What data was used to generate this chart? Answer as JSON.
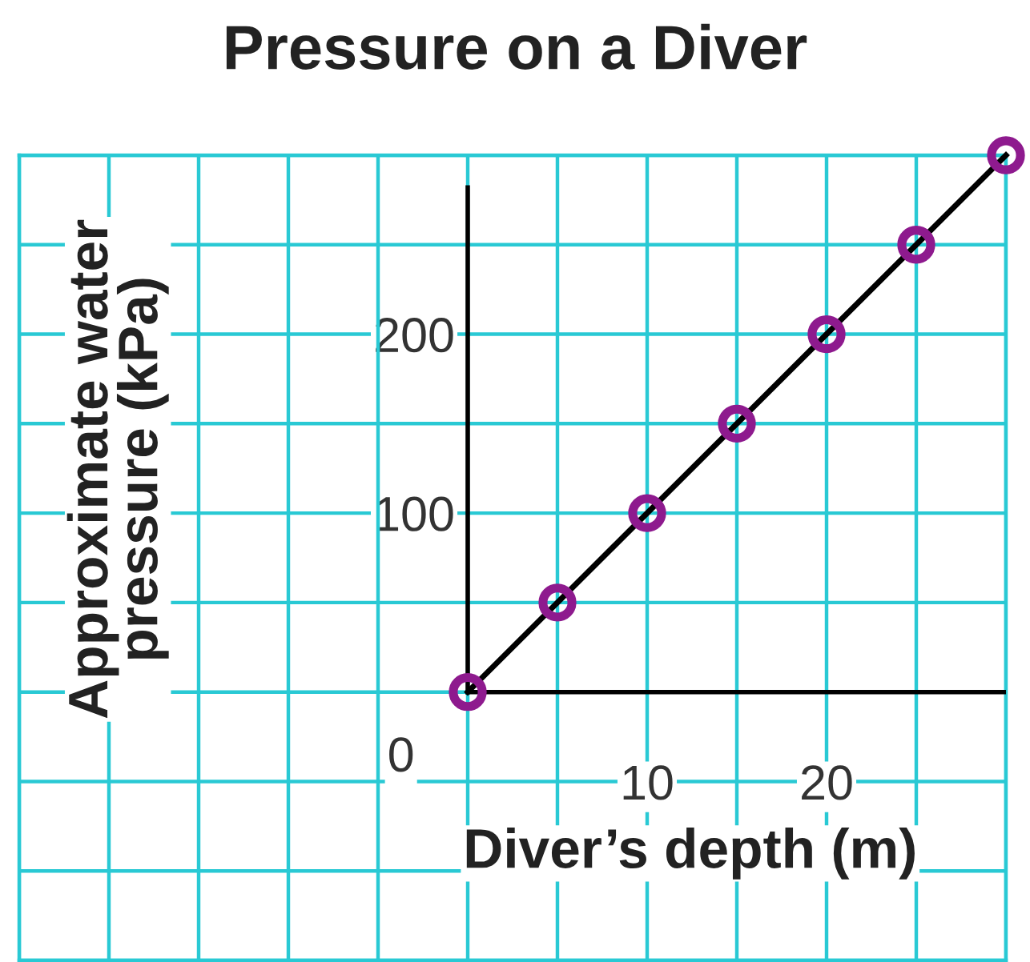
{
  "chart_data": {
    "type": "scatter",
    "title": "Pressure on a Diver",
    "xlabel": "Diver’s depth (m)",
    "ylabel": "Approximate water\npressure (kPa)",
    "x": [
      0,
      5,
      10,
      15,
      20,
      25,
      30
    ],
    "series": [
      {
        "color": "#8e1a8e",
        "marker": "circle",
        "values": [
          0,
          50,
          100,
          150,
          200,
          250,
          300
        ]
      },
      {
        "type": "line",
        "color": "#000000",
        "x": [
          0,
          30
        ],
        "values": [
          0,
          300
        ]
      }
    ],
    "xlim": [
      -25,
      30
    ],
    "ylim": [
      -150,
      300
    ],
    "xticks": [
      {
        "value": -25,
        "label": null
      },
      {
        "value": -20,
        "label": null
      },
      {
        "value": -15,
        "label": null
      },
      {
        "value": -10,
        "label": null
      },
      {
        "value": -5,
        "label": null
      },
      {
        "value": 0,
        "label": null
      },
      {
        "value": 5,
        "label": null
      },
      10,
      {
        "value": 15,
        "label": null
      },
      20,
      {
        "value": 25,
        "label": null
      },
      {
        "value": 30,
        "label": null
      }
    ],
    "yticks": [
      {
        "value": -150,
        "label": null
      },
      {
        "value": -100,
        "label": null
      },
      {
        "value": -50,
        "label": null
      },
      {
        "value": 0,
        "label": null
      },
      {
        "value": 50,
        "label": null
      },
      100,
      {
        "value": 150,
        "label": null
      },
      200,
      {
        "value": 250,
        "label": null
      },
      {
        "value": 300,
        "label": null
      }
    ],
    "annotations": [
      {
        "text": "0",
        "x": 0,
        "y": 0
      }
    ],
    "grid": true,
    "legend": false
  }
}
